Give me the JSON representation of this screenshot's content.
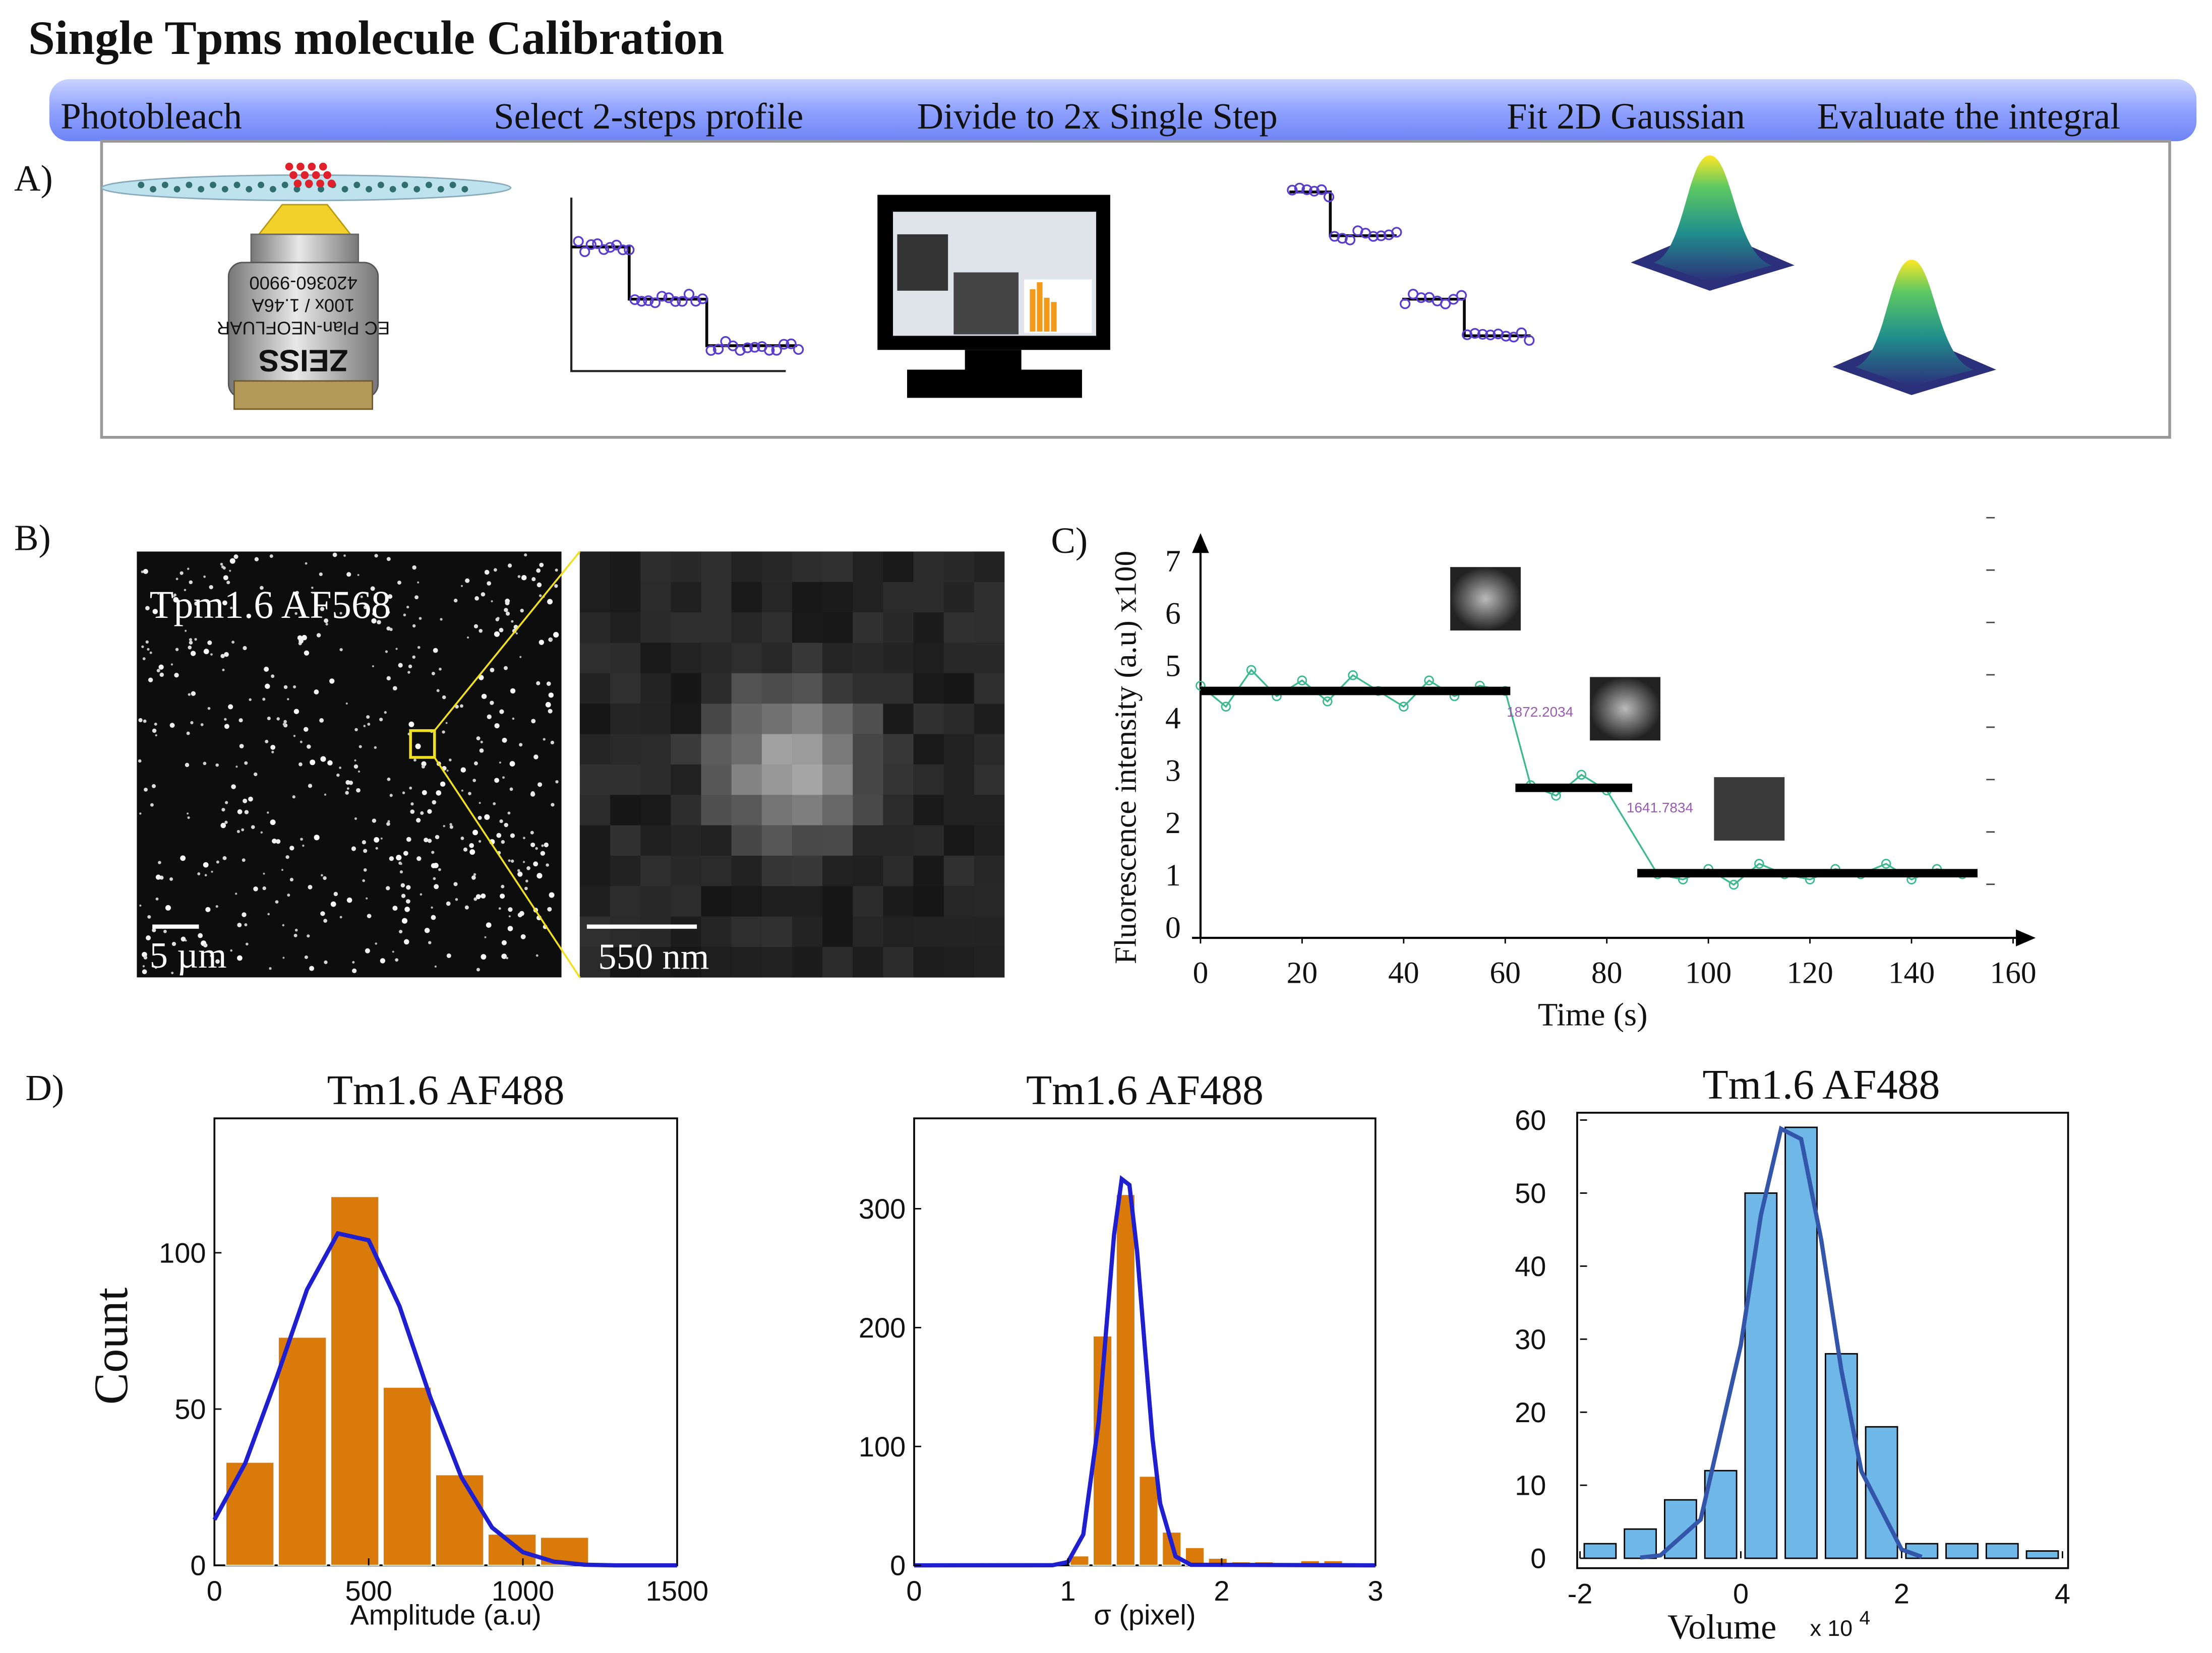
{
  "title": "Single Tpms molecule Calibration",
  "steps": [
    "Photobleach",
    "Select 2-steps profile",
    "Divide to 2x Single Step",
    "Fit 2D Gaussian",
    "Evaluate the integral"
  ],
  "panel_labels": [
    "A)",
    "B)",
    "C)",
    "D)"
  ],
  "objective_text": [
    "ZEISS",
    "EC Plan-NEOFLUAR",
    "100x / 1.46A",
    "420360-9900"
  ],
  "panel_b": {
    "label": "Tpm1.6 AF568",
    "scale_left": "5 µm",
    "scale_right": "550 nm"
  },
  "chart_data": [
    {
      "type": "line",
      "ylabel": "Fluorescence intensity (a.u) x100",
      "xlabel": "Time (s)",
      "xlim": [
        0,
        160
      ],
      "ylim": [
        0,
        7
      ],
      "xticks": [
        0,
        20,
        40,
        60,
        80,
        100,
        120,
        140,
        160
      ],
      "yticks": [
        0,
        1,
        2,
        3,
        4,
        5,
        6,
        7
      ],
      "series": [
        {
          "color": "#3cb990",
          "markers": true,
          "x": [
            0,
            5,
            10,
            15,
            20,
            25,
            30,
            35,
            40,
            45,
            50,
            55,
            60,
            65,
            70,
            75,
            80,
            90,
            95,
            100,
            105,
            110,
            115,
            120,
            125,
            130,
            135,
            140,
            145,
            150
          ],
          "values": [
            4.6,
            4.2,
            4.9,
            4.4,
            4.7,
            4.3,
            4.8,
            4.5,
            4.2,
            4.7,
            4.4,
            4.6,
            4.5,
            2.7,
            2.5,
            2.9,
            2.6,
            1.0,
            0.9,
            1.1,
            0.8,
            1.2,
            1.0,
            0.9,
            1.1,
            1.0,
            1.2,
            0.9,
            1.1,
            1.0
          ]
        },
        {
          "color": "#000000",
          "markers": false,
          "x": [
            0,
            61,
            61,
            62,
            85,
            85,
            86,
            153
          ],
          "values": [
            4.5,
            4.5,
            null,
            2.65,
            2.65,
            null,
            1.02,
            1.02
          ]
        }
      ],
      "annotations": [
        "1872.2034",
        "1641.7834"
      ]
    },
    {
      "type": "histogram",
      "title": "Tm1.6 AF488",
      "xlabel": "Amplitude (a.u)",
      "ylabel": "Count",
      "color": "#d97a0a",
      "bins": [
        30,
        200,
        370,
        540,
        710,
        880,
        1050,
        1220
      ],
      "values": [
        33,
        73,
        118,
        57,
        29,
        10,
        9
      ],
      "xlim": [
        0,
        1500
      ],
      "ylim": [
        0,
        143
      ],
      "xticks": [
        0,
        500,
        1000,
        1500
      ],
      "yticks": [
        0,
        50,
        100
      ],
      "fit": {
        "color": "#1f1fd0",
        "x": [
          0,
          100,
          200,
          300,
          400,
          500,
          600,
          700,
          800,
          900,
          1000,
          1100,
          1200,
          1300,
          1500
        ],
        "values": [
          14.6,
          32.7,
          59.6,
          88.2,
          106.2,
          104,
          82.9,
          53.7,
          28.3,
          12.1,
          4.2,
          1.2,
          0.2,
          0,
          0
        ]
      }
    },
    {
      "type": "histogram",
      "title": "Tm1.6 AF488",
      "xlabel": "σ (pixel)",
      "color": "#d97a0a",
      "bins": [
        1.0,
        1.15,
        1.3,
        1.45,
        1.6,
        1.75,
        1.9,
        2.05,
        2.2,
        2.35,
        2.5,
        2.65,
        2.8,
        2.95
      ],
      "values": [
        8,
        193,
        312,
        75,
        28,
        15,
        6,
        3,
        3,
        2,
        4,
        4,
        2
      ],
      "xlim": [
        0,
        3
      ],
      "ylim": [
        0,
        376
      ],
      "xticks": [
        0,
        1,
        2,
        3
      ],
      "yticks": [
        0,
        100,
        200,
        300
      ],
      "fit": {
        "color": "#1f1fd0",
        "x": [
          0,
          0.9,
          1.0,
          1.1,
          1.2,
          1.25,
          1.3,
          1.35,
          1.4,
          1.45,
          1.5,
          1.55,
          1.6,
          1.7,
          1.8,
          3
        ],
        "values": [
          0,
          0.1,
          2.8,
          26,
          121,
          200,
          278,
          325,
          320,
          264,
          184,
          107,
          52,
          7.5,
          0.5,
          0
        ]
      }
    },
    {
      "type": "histogram",
      "title": "Tm1.6 AF488",
      "xlabel": "Volume",
      "x_multiplier": "x 10",
      "x_exponent": "4",
      "color": "#6fb7e6",
      "bins": [
        -2,
        -1.5,
        -1,
        -0.5,
        0,
        0.5,
        1,
        1.5,
        2,
        2.5,
        3,
        3.5,
        4
      ],
      "values": [
        2,
        4,
        8,
        12,
        50,
        59,
        28,
        18,
        2,
        2,
        2,
        1
      ],
      "xlim": [
        -2,
        4
      ],
      "ylim": [
        0,
        61
      ],
      "xticks": [
        -2,
        0,
        2,
        4
      ],
      "yticks": [
        0,
        10,
        20,
        30,
        40,
        50,
        60
      ],
      "fit": {
        "color": "#3355aa",
        "x": [
          -1.25,
          -1,
          -0.5,
          0,
          0.25,
          0.5,
          0.75,
          1,
          1.25,
          1.5,
          2,
          2.25
        ],
        "values": [
          0.1,
          0.4,
          5.3,
          29.2,
          47,
          58.8,
          57.4,
          43.6,
          25.8,
          11.9,
          1.2,
          0.2
        ]
      }
    }
  ]
}
